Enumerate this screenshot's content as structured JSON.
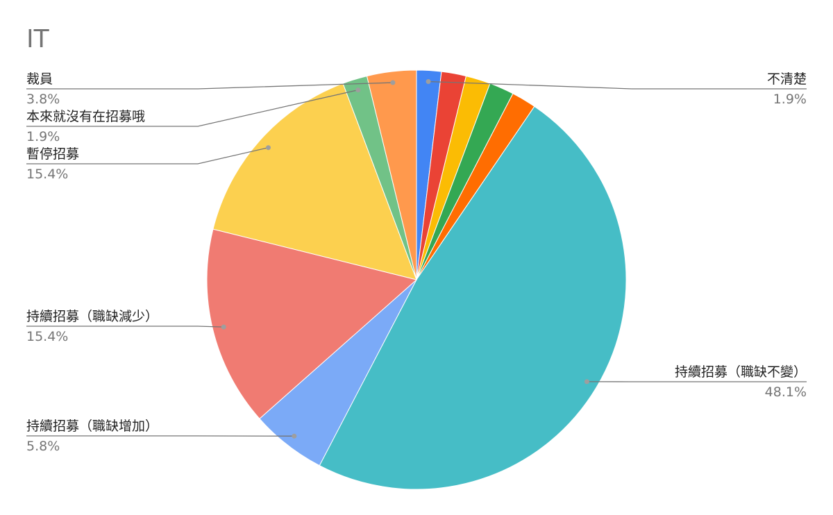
{
  "chart_data": {
    "type": "pie",
    "title": "IT",
    "categories": [
      "不清楚",
      null,
      null,
      null,
      null,
      "持續招募（職缺不變）",
      "持續招募（職缺增加）",
      "持續招募（職缺減少）",
      "暫停招募",
      "本來就沒有在招募哦",
      "裁員"
    ],
    "values": [
      1.9,
      1.9,
      1.9,
      1.9,
      1.9,
      48.1,
      5.8,
      15.4,
      15.4,
      1.9,
      3.8
    ],
    "value_labels": [
      "1.9%",
      null,
      null,
      null,
      null,
      "48.1%",
      "5.8%",
      "15.4%",
      "15.4%",
      "1.9%",
      "3.8%"
    ],
    "colors": [
      "#4285f4",
      "#ea4335",
      "#fbbc04",
      "#34a853",
      "#ff6d01",
      "#46bdc6",
      "#7baaf7",
      "#f07b72",
      "#fcd04f",
      "#71c287",
      "#ff994d"
    ]
  }
}
